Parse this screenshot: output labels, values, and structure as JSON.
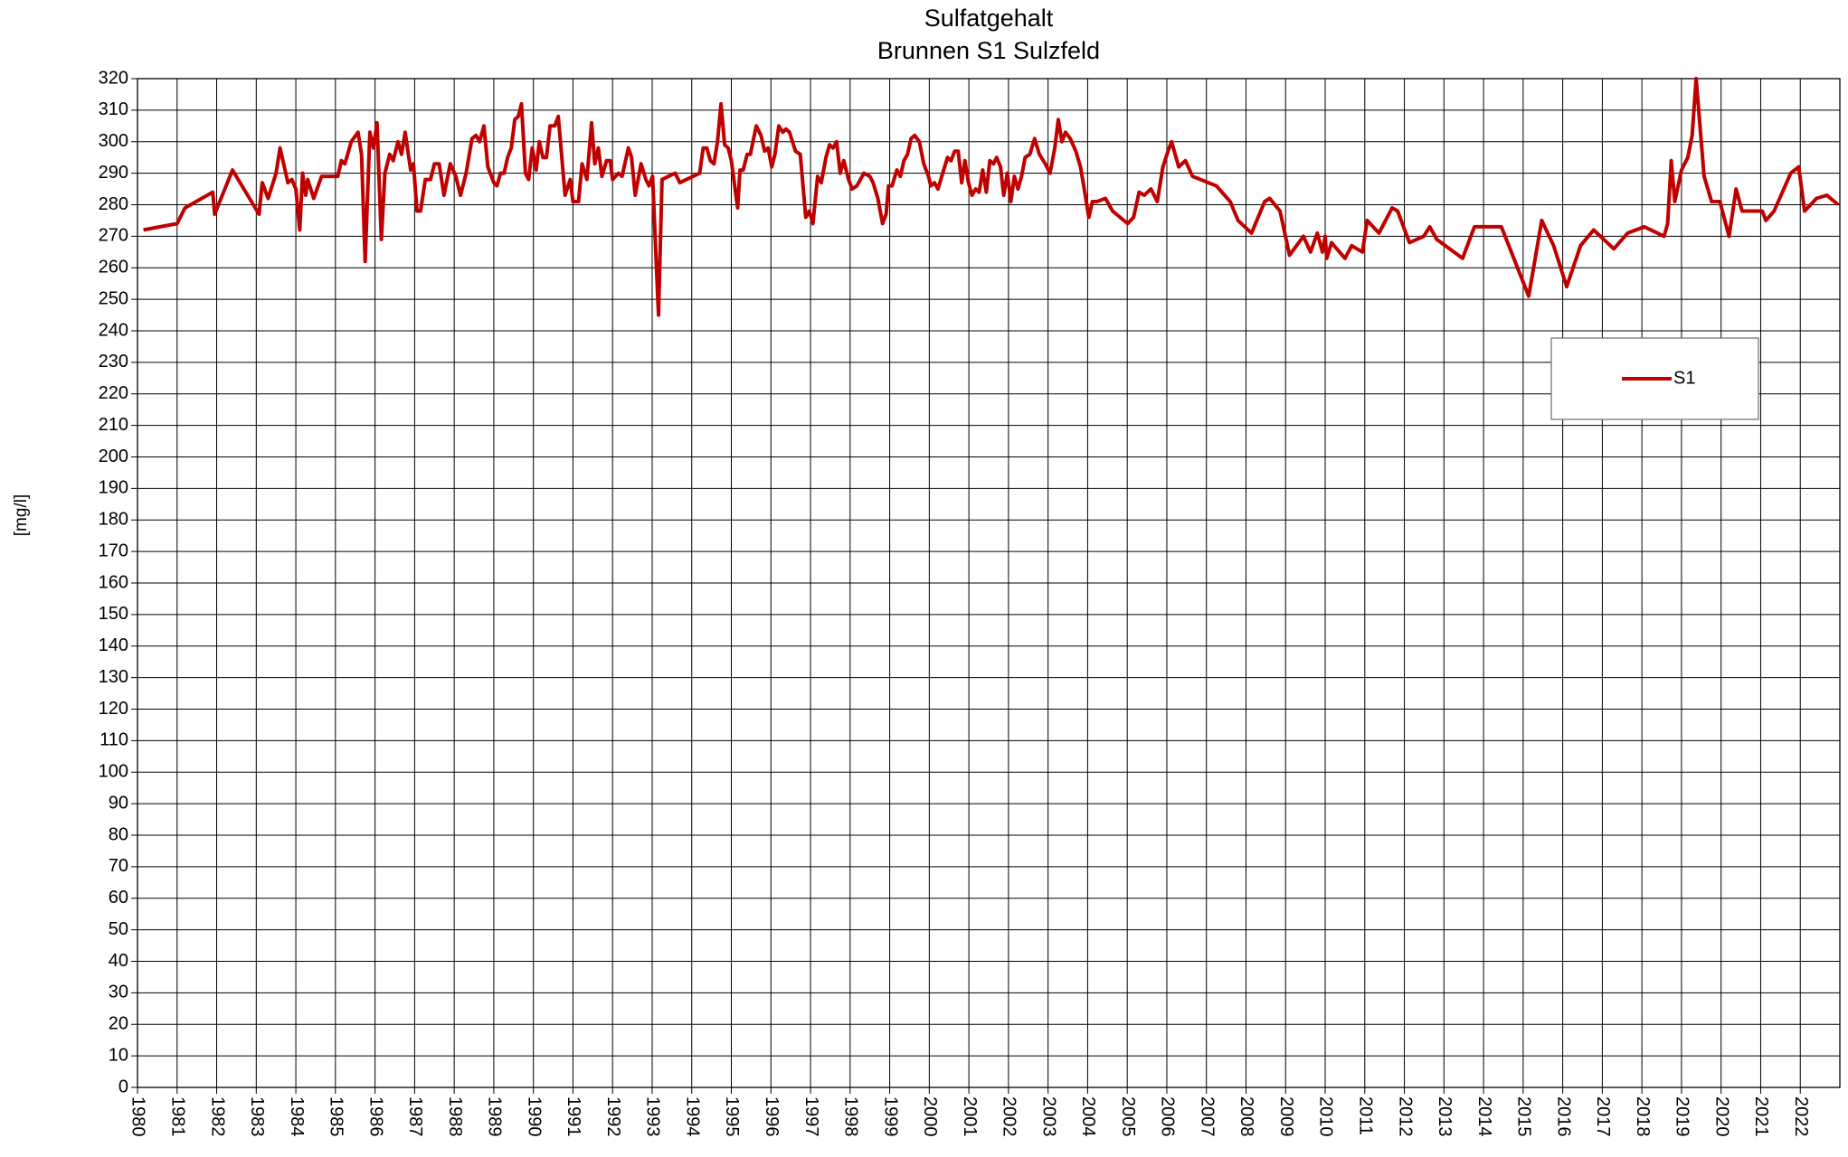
{
  "chart_data": {
    "type": "line",
    "title": "Sulfatgehalt",
    "subtitle": "Brunnen S1 Sulzfeld",
    "y_label": "[mg/l]",
    "x": [
      1980.15,
      1981.0,
      1981.2,
      1981.9,
      1981.95,
      1982.4,
      1983.07,
      1983.15,
      1983.3,
      1983.5,
      1983.6,
      1983.8,
      1983.9,
      1984.0,
      1984.1,
      1984.17,
      1984.25,
      1984.3,
      1984.45,
      1984.65,
      1985.06,
      1985.15,
      1985.24,
      1985.4,
      1985.57,
      1985.66,
      1985.75,
      1985.87,
      1985.96,
      1986.05,
      1986.16,
      1986.25,
      1986.37,
      1986.46,
      1986.58,
      1986.67,
      1986.76,
      1986.9,
      1986.97,
      1987.06,
      1987.15,
      1987.27,
      1987.4,
      1987.5,
      1987.62,
      1987.74,
      1987.9,
      1988.04,
      1988.16,
      1988.3,
      1988.45,
      1988.55,
      1988.64,
      1988.75,
      1988.85,
      1989.0,
      1989.08,
      1989.17,
      1989.26,
      1989.35,
      1989.44,
      1989.53,
      1989.62,
      1989.7,
      1989.8,
      1989.88,
      1989.97,
      1990.07,
      1990.15,
      1990.24,
      1990.33,
      1990.42,
      1990.54,
      1990.63,
      1990.8,
      1990.93,
      1991.0,
      1991.14,
      1991.23,
      1991.35,
      1991.47,
      1991.55,
      1991.64,
      1991.73,
      1991.85,
      1991.94,
      1992.0,
      1992.15,
      1992.24,
      1992.4,
      1992.48,
      1992.57,
      1992.72,
      1992.84,
      1992.92,
      1993.01,
      1993.16,
      1993.25,
      1993.58,
      1993.7,
      1994.2,
      1994.29,
      1994.38,
      1994.47,
      1994.56,
      1994.65,
      1994.74,
      1994.83,
      1994.92,
      1995.0,
      1995.16,
      1995.22,
      1995.3,
      1995.4,
      1995.48,
      1995.63,
      1995.75,
      1995.84,
      1995.93,
      1996.02,
      1996.1,
      1996.2,
      1996.3,
      1996.38,
      1996.47,
      1996.62,
      1996.74,
      1996.88,
      1996.97,
      1997.06,
      1997.18,
      1997.27,
      1997.39,
      1997.48,
      1997.57,
      1997.66,
      1997.75,
      1997.84,
      1997.96,
      1998.05,
      1998.17,
      1998.35,
      1998.5,
      1998.58,
      1998.7,
      1998.82,
      1998.91,
      1998.97,
      1999.06,
      1999.18,
      1999.27,
      1999.36,
      1999.45,
      1999.54,
      1999.63,
      1999.75,
      1999.86,
      1999.98,
      2000.04,
      2000.13,
      2000.22,
      2000.34,
      2000.46,
      2000.55,
      2000.64,
      2000.73,
      2000.82,
      2000.9,
      2000.99,
      2001.08,
      2001.17,
      2001.26,
      2001.35,
      2001.44,
      2001.53,
      2001.62,
      2001.7,
      2001.8,
      2001.88,
      2001.97,
      2002.06,
      2002.15,
      2002.24,
      2002.33,
      2002.42,
      2002.54,
      2002.66,
      2002.78,
      2002.93,
      2003.05,
      2003.17,
      2003.26,
      2003.35,
      2003.44,
      2003.56,
      2003.7,
      2003.82,
      2003.94,
      2004.03,
      2004.12,
      2004.24,
      2004.45,
      2004.63,
      2005.01,
      2005.16,
      2005.3,
      2005.43,
      2005.6,
      2005.76,
      2005.9,
      2006.03,
      2006.12,
      2006.3,
      2006.47,
      2006.65,
      2007.25,
      2007.6,
      2007.8,
      2008.14,
      2008.47,
      2008.6,
      2008.86,
      2009.1,
      2009.45,
      2009.63,
      2009.8,
      2009.93,
      2010.0,
      2010.04,
      2010.16,
      2010.5,
      2010.67,
      2010.94,
      2011.06,
      2011.36,
      2011.69,
      2011.83,
      2012.13,
      2012.49,
      2012.64,
      2012.82,
      2013.47,
      2013.77,
      2014.45,
      2015.14,
      2015.47,
      2015.77,
      2016.1,
      2016.45,
      2016.78,
      2017.29,
      2017.64,
      2018.06,
      2018.56,
      2018.65,
      2018.74,
      2018.83,
      2019.0,
      2019.16,
      2019.27,
      2019.37,
      2019.57,
      2019.76,
      2019.97,
      2020.2,
      2020.38,
      2020.53,
      2021.04,
      2021.13,
      2021.34,
      2021.76,
      2021.96,
      2022.11,
      2022.41,
      2022.67,
      2022.96
    ],
    "series": [
      {
        "name": "S1",
        "color": "#c00000",
        "values": [
          272,
          274,
          279,
          284,
          277,
          291,
          277,
          287,
          282,
          290,
          298,
          287,
          288,
          285,
          272,
          290,
          283,
          288,
          282,
          289,
          289,
          294,
          293,
          300,
          303,
          296,
          262,
          303,
          298,
          306,
          269,
          290,
          296,
          294,
          300,
          296,
          303,
          291,
          293,
          278,
          278,
          288,
          288,
          293,
          293,
          283,
          293,
          289,
          283,
          290,
          301,
          302,
          300,
          305,
          292,
          287,
          286,
          290,
          290,
          295,
          298,
          307,
          308,
          312,
          290,
          288,
          298,
          291,
          300,
          295,
          295,
          305,
          305,
          308,
          283,
          288,
          281,
          281,
          293,
          288,
          306,
          293,
          298,
          289,
          294,
          294,
          288,
          290,
          289,
          298,
          295,
          283,
          293,
          288,
          286,
          289,
          245,
          288,
          290,
          287,
          290,
          298,
          298,
          294,
          293,
          300,
          312,
          299,
          298,
          294,
          279,
          291,
          291,
          296,
          296,
          305,
          302,
          297,
          298,
          292,
          296,
          305,
          303,
          304,
          303,
          297,
          296,
          276,
          278,
          274,
          289,
          287,
          295,
          299,
          298,
          300,
          290,
          294,
          288,
          285,
          286,
          290,
          289,
          287,
          282,
          274,
          277,
          286,
          286,
          291,
          289,
          294,
          296,
          301,
          302,
          300,
          293,
          289,
          286,
          287,
          285,
          290,
          295,
          294,
          297,
          297,
          287,
          294,
          287,
          283,
          285,
          284,
          291,
          284,
          294,
          293,
          295,
          292,
          283,
          290,
          281,
          289,
          285,
          289,
          295,
          296,
          301,
          296,
          293,
          290,
          298,
          307,
          300,
          303,
          301,
          297,
          292,
          283,
          276,
          281,
          281,
          282,
          278,
          274,
          276,
          284,
          283,
          285,
          281,
          292,
          297,
          300,
          292,
          294,
          289,
          286,
          281,
          275,
          271,
          281,
          282,
          278,
          264,
          270,
          265,
          271,
          265,
          270,
          263,
          268,
          263,
          267,
          265,
          275,
          271,
          279,
          278,
          268,
          270,
          273,
          269,
          263,
          273,
          273,
          251,
          275,
          267,
          254,
          267,
          272,
          266,
          271,
          273,
          270,
          274,
          294,
          281,
          291,
          295,
          302,
          320,
          289,
          281,
          281,
          270,
          285,
          278,
          278,
          275,
          278,
          290,
          292,
          278,
          282,
          283,
          280
        ]
      }
    ],
    "xlim": [
      1980,
      2023
    ],
    "xticks": [
      1980,
      1981,
      1982,
      1983,
      1984,
      1985,
      1986,
      1987,
      1988,
      1989,
      1990,
      1991,
      1992,
      1993,
      1994,
      1995,
      1996,
      1997,
      1998,
      1999,
      2000,
      2001,
      2002,
      2003,
      2004,
      2005,
      2006,
      2007,
      2008,
      2009,
      2010,
      2011,
      2012,
      2013,
      2014,
      2015,
      2016,
      2017,
      2018,
      2019,
      2020,
      2021,
      2022
    ],
    "ylim": [
      0,
      320
    ],
    "yticks": [
      0,
      10,
      20,
      30,
      40,
      50,
      60,
      70,
      80,
      90,
      100,
      110,
      120,
      130,
      140,
      150,
      160,
      170,
      180,
      190,
      200,
      210,
      220,
      230,
      240,
      250,
      260,
      270,
      280,
      290,
      300,
      310,
      320
    ],
    "grid": true
  }
}
